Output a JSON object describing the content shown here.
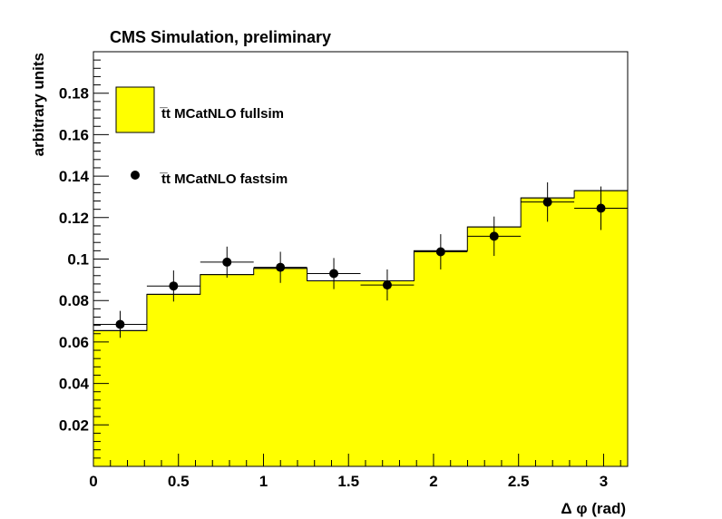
{
  "chart_data": {
    "type": "histogram",
    "title": "CMS Simulation, preliminary",
    "xlabel": "Δ φ (rad)",
    "ylabel": "arbitrary units",
    "xlim": [
      0,
      3.1416
    ],
    "ylim": [
      0,
      0.2
    ],
    "x_ticks": [
      0,
      0.5,
      1,
      1.5,
      2,
      2.5,
      3
    ],
    "x_tick_labels": [
      "0",
      "0.5",
      "1",
      "1.5",
      "2",
      "2.5",
      "3"
    ],
    "y_ticks": [
      0.02,
      0.04,
      0.06,
      0.08,
      0.1,
      0.12,
      0.14,
      0.16,
      0.18
    ],
    "y_tick_labels": [
      "0.02",
      "0.04",
      "0.06",
      "0.08",
      "0.1",
      "0.12",
      "0.14",
      "0.16",
      "0.18"
    ],
    "bin_edges": [
      0,
      0.3142,
      0.6283,
      0.9425,
      1.2566,
      1.5708,
      1.885,
      2.1991,
      2.5133,
      2.8274,
      3.1416
    ],
    "series": [
      {
        "name": "t̅t MCatNLO fullsim",
        "style": "filled-histogram",
        "color": "#ffff00",
        "values": [
          0.0655,
          0.083,
          0.0925,
          0.0955,
          0.0895,
          0.0895,
          0.104,
          0.1155,
          0.1295,
          0.133
        ]
      },
      {
        "name": "t̅t MCatNLO fastsim",
        "style": "points-with-errors",
        "color": "#000000",
        "values": [
          0.0685,
          0.087,
          0.0985,
          0.096,
          0.093,
          0.0875,
          0.1035,
          0.111,
          0.1275,
          0.1245
        ],
        "errors": [
          0.0065,
          0.0075,
          0.0075,
          0.0075,
          0.0075,
          0.0075,
          0.0085,
          0.0095,
          0.0095,
          0.0105
        ]
      }
    ],
    "legend": {
      "placement": "top-left",
      "entries": [
        "t̅t MCatNLO fullsim",
        "t̅t MCatNLO fastsim"
      ]
    }
  }
}
